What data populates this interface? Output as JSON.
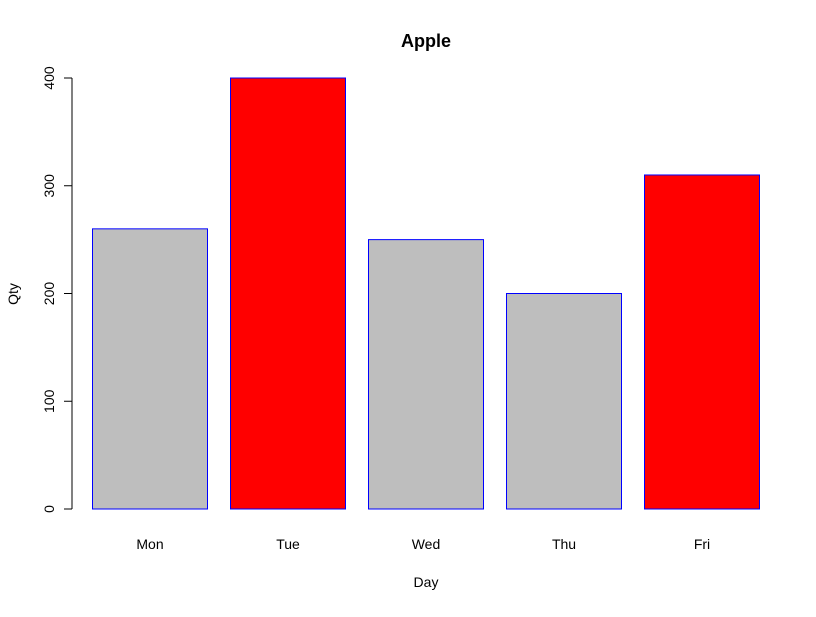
{
  "chart_data": {
    "type": "bar",
    "title": "Apple",
    "xlabel": "Day",
    "ylabel": "Qty",
    "categories": [
      "Mon",
      "Tue",
      "Wed",
      "Thu",
      "Fri"
    ],
    "values": [
      260,
      400,
      250,
      200,
      310
    ],
    "bar_colors": [
      "#bebebe",
      "#ff0000",
      "#bebebe",
      "#bebebe",
      "#ff0000"
    ],
    "bar_border_color": "#0000ff",
    "ylim": [
      0,
      400
    ],
    "yticks": [
      "0",
      "100",
      "200",
      "300",
      "400"
    ],
    "grid": false,
    "legend": "none"
  }
}
